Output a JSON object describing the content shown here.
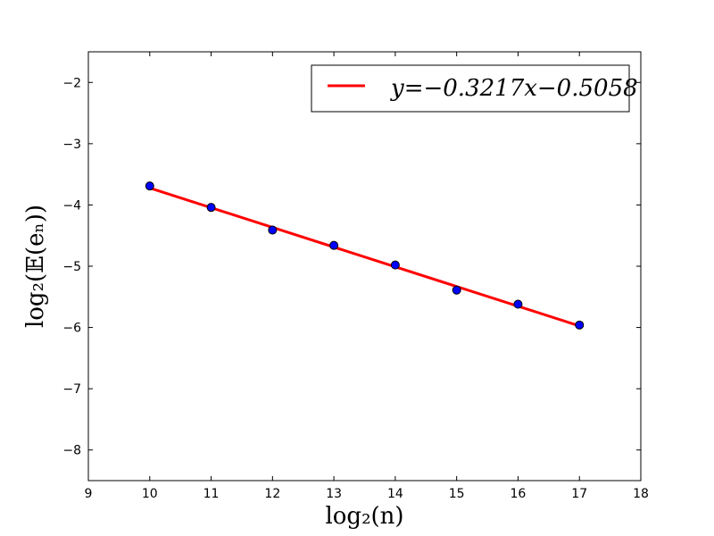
{
  "chart_data": {
    "type": "scatter",
    "title": "",
    "xlabel": "log₂(n)",
    "ylabel": "log₂(𝔼(eₙ))",
    "xlim": [
      9,
      18
    ],
    "ylim": [
      -8.5,
      -1.5
    ],
    "grid": false,
    "legend_position": "top-right",
    "xticks": [
      9,
      10,
      11,
      12,
      13,
      14,
      15,
      16,
      17,
      18
    ],
    "yticks": [
      -8,
      -7,
      -6,
      -5,
      -4,
      -3,
      -2
    ],
    "x_tick_labels": [
      "9",
      "10",
      "11",
      "12",
      "13",
      "14",
      "15",
      "16",
      "17",
      "18"
    ],
    "y_tick_labels": [
      "−8",
      "−7",
      "−6",
      "−5",
      "−4",
      "−3",
      "−2"
    ],
    "series": [
      {
        "kind": "scatter",
        "color": "#0000ff",
        "x": [
          10,
          11,
          12,
          13,
          14,
          15,
          16,
          17
        ],
        "y": [
          -3.69,
          -4.04,
          -4.41,
          -4.66,
          -4.98,
          -5.39,
          -5.62,
          -5.96
        ]
      },
      {
        "kind": "line",
        "name": "y=−0.3217x−0.5058",
        "color": "#ff0000",
        "slope": -0.3217,
        "intercept": -0.5058,
        "x_range": [
          10,
          17
        ]
      }
    ]
  }
}
